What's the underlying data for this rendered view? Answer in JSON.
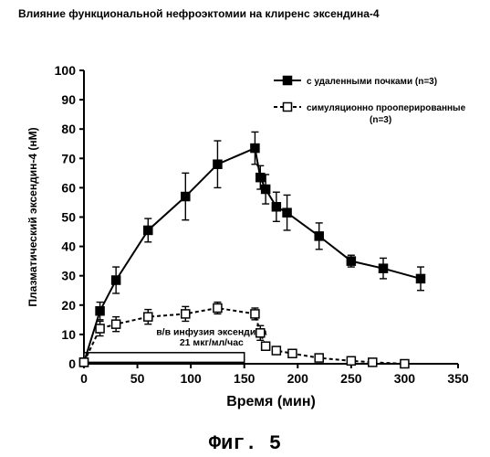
{
  "header": {
    "title": "Влияние функциональной нефроэктомии на клиренс  эксендина-4"
  },
  "figure": {
    "caption": "Фиг. 5"
  },
  "chart_data": {
    "type": "line",
    "xlabel": "Время (мин)",
    "ylabel": "Плазматический эксендин-4 (нМ)",
    "xlim": [
      0,
      350
    ],
    "ylim": [
      0,
      100
    ],
    "xticks": [
      0,
      50,
      100,
      150,
      200,
      250,
      300,
      350
    ],
    "yticks": [
      0,
      10,
      20,
      30,
      40,
      50,
      60,
      70,
      80,
      90,
      100
    ],
    "grid": false,
    "legend_position": "top-right",
    "series": [
      {
        "name": "с удаленными почками (n=3)",
        "marker": "filled-square",
        "line": "solid",
        "color": "#000000",
        "x": [
          0,
          15,
          30,
          60,
          95,
          125,
          160,
          165,
          170,
          180,
          190,
          220,
          250,
          280,
          315
        ],
        "y": [
          0.5,
          18,
          28.5,
          45.5,
          57,
          68,
          73.5,
          63.5,
          59.5,
          53.5,
          51.5,
          43.5,
          35,
          32.5,
          29
        ],
        "err": [
          0,
          3,
          4.5,
          4,
          8,
          8,
          5.5,
          4,
          5,
          5,
          6,
          4.5,
          2,
          3.5,
          4
        ]
      },
      {
        "name": "симуляционно прооперированные\n(n=3)",
        "marker": "open-square",
        "line": "dashed",
        "color": "#000000",
        "x": [
          0,
          15,
          30,
          60,
          95,
          125,
          160,
          165,
          170,
          180,
          195,
          220,
          250,
          270,
          300
        ],
        "y": [
          0.5,
          12,
          13.5,
          16,
          17,
          19,
          17,
          10.5,
          6,
          4.5,
          3.5,
          2,
          1,
          0.5,
          0
        ],
        "err": [
          0,
          2.5,
          2.5,
          2.5,
          2.5,
          2,
          2,
          2.5,
          1,
          1,
          1,
          0.5,
          0.5,
          0.3,
          0.2
        ]
      }
    ],
    "annotations": [
      {
        "text_line1": "в/в инфузия эксендина",
        "text_line2": "21 мкг/мл/час",
        "x_start": 0,
        "x_end": 150
      }
    ]
  }
}
